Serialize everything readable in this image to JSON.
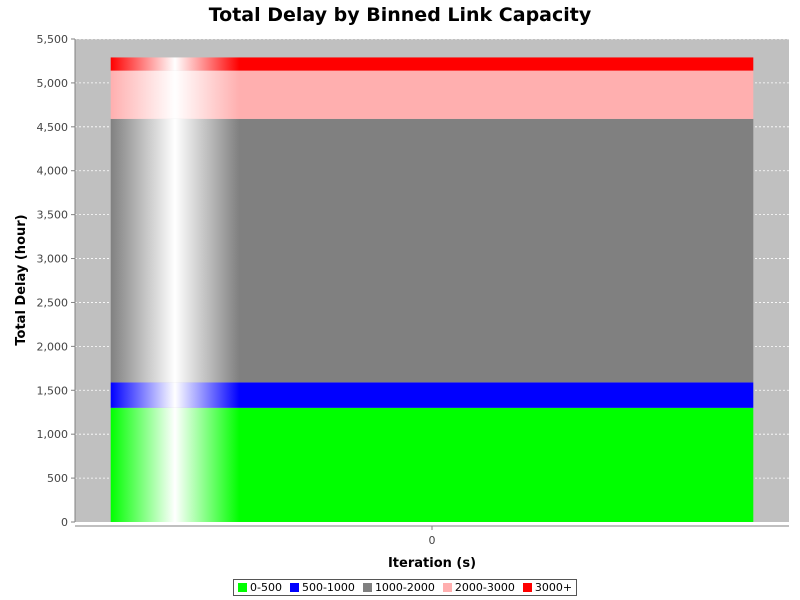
{
  "chart_data": {
    "type": "bar",
    "stacked": true,
    "title": "Total Delay by Binned Link Capacity",
    "xlabel": "Iteration (s)",
    "ylabel": "Total Delay (hour)",
    "categories": [
      "0"
    ],
    "ylim": [
      0,
      5500
    ],
    "yticks": [
      0,
      500,
      1000,
      1500,
      2000,
      2500,
      3000,
      3500,
      4000,
      4500,
      5000,
      5500
    ],
    "ytick_labels": [
      "0",
      "500",
      "1,000",
      "1,500",
      "2,000",
      "2,500",
      "3,000",
      "3,500",
      "4,000",
      "4,500",
      "5,000",
      "5,500"
    ],
    "series": [
      {
        "name": "0-500",
        "color": "#00ff00",
        "values": [
          1300
        ]
      },
      {
        "name": "500-1000",
        "color": "#0000ff",
        "values": [
          290
        ]
      },
      {
        "name": "1000-2000",
        "color": "#808080",
        "values": [
          3000
        ]
      },
      {
        "name": "2000-3000",
        "color": "#ffafaf",
        "values": [
          550
        ]
      },
      {
        "name": "3000+",
        "color": "#ff0000",
        "values": [
          150
        ]
      }
    ],
    "grid": true,
    "legend_position": "bottom"
  }
}
